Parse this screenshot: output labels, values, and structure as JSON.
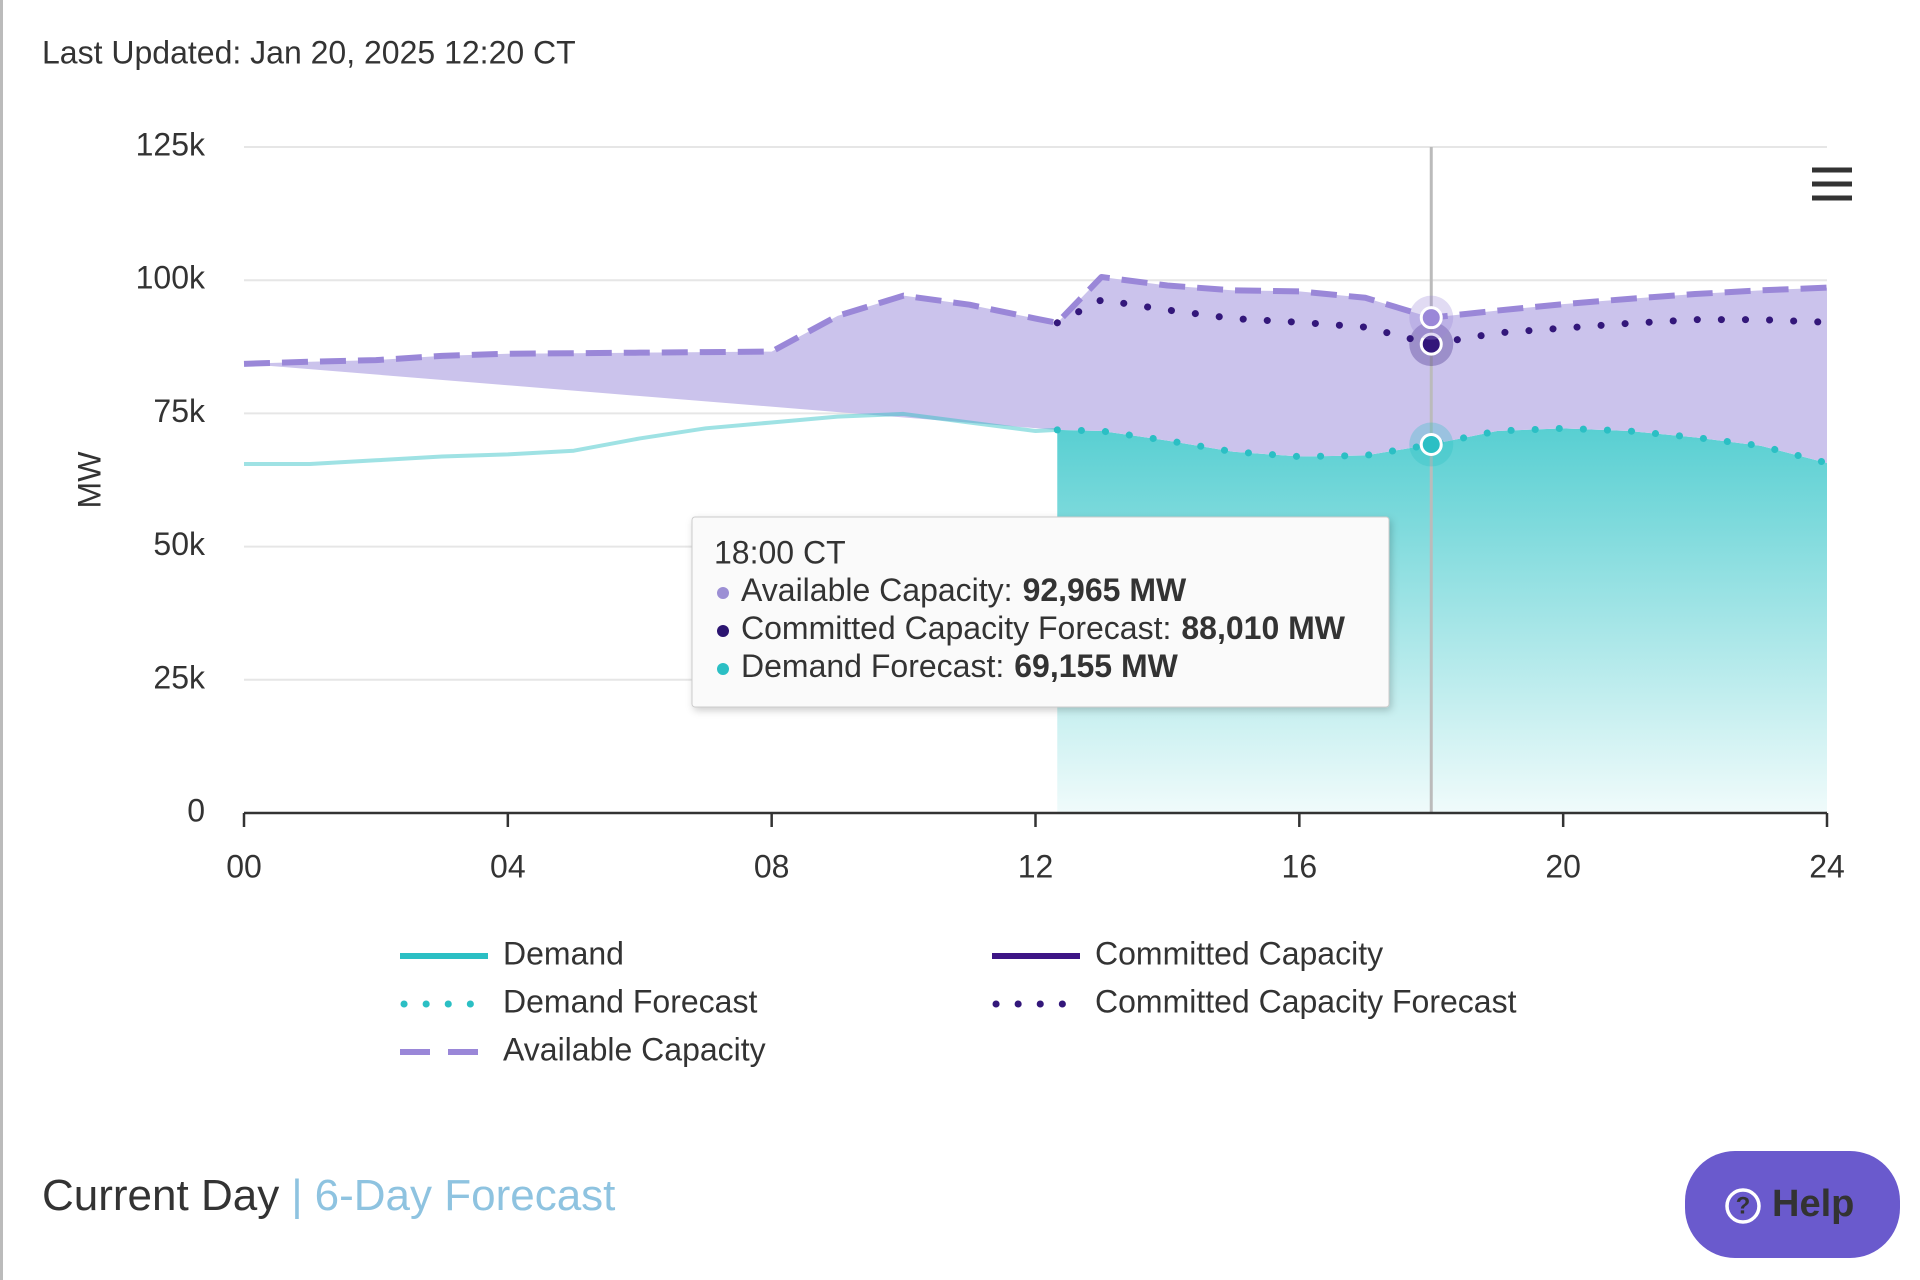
{
  "header": {
    "last_updated": "Last Updated: Jan 20, 2025 12:20 CT"
  },
  "chart_data": {
    "type": "line",
    "y_label": "MW",
    "x": [
      0,
      1,
      2,
      3,
      4,
      5,
      6,
      7,
      8,
      9,
      10,
      11,
      12,
      12.33,
      13,
      14,
      15,
      16,
      17,
      18,
      19,
      20,
      21,
      22,
      23,
      24
    ],
    "xlim": [
      0,
      24
    ],
    "xticks": [
      {
        "value": 0,
        "label": "00"
      },
      {
        "value": 4,
        "label": "04"
      },
      {
        "value": 8,
        "label": "08"
      },
      {
        "value": 12,
        "label": "12"
      },
      {
        "value": 16,
        "label": "16"
      },
      {
        "value": 20,
        "label": "20"
      },
      {
        "value": 24,
        "label": "24"
      }
    ],
    "ylim": [
      0,
      125000
    ],
    "yticks": [
      0,
      {
        "value": 25000,
        "label": "25k"
      },
      {
        "value": 50000,
        "label": "50k"
      },
      {
        "value": 75000,
        "label": "75k"
      },
      {
        "value": 100000,
        "label": "100k"
      },
      {
        "value": 125000,
        "label": "125k"
      }
    ],
    "grid": true,
    "crosshair_x": 18,
    "series": [
      {
        "name": "Demand",
        "color": "#2bbfc4",
        "dash": "solid",
        "values": [
          65500,
          65500,
          66200,
          66900,
          67300,
          68000,
          70300,
          72200,
          73300,
          74400,
          74900,
          73300,
          71700,
          71900,
          null,
          null,
          null,
          null,
          null,
          null,
          null,
          null,
          null,
          null,
          null,
          null
        ]
      },
      {
        "name": "Committed Capacity",
        "color": "#3d1585",
        "dash": "solid",
        "values": [
          null,
          null,
          null,
          null,
          null,
          null,
          null,
          null,
          null,
          null,
          null,
          null,
          null,
          null,
          null,
          null,
          null,
          null,
          null,
          null,
          null,
          null,
          null,
          null,
          null,
          null
        ]
      },
      {
        "name": "Demand Forecast",
        "color": "#2bbfc4",
        "dash": "dotted",
        "values": [
          null,
          null,
          null,
          null,
          null,
          null,
          null,
          null,
          null,
          null,
          null,
          null,
          null,
          71900,
          71700,
          69900,
          67800,
          66900,
          67100,
          69155,
          71700,
          72200,
          71700,
          70500,
          68900,
          65700
        ]
      },
      {
        "name": "Committed Capacity Forecast",
        "color": "#33177a",
        "dash": "dotted",
        "values": [
          null,
          null,
          null,
          null,
          null,
          null,
          null,
          null,
          null,
          null,
          null,
          null,
          null,
          92000,
          96300,
          94400,
          92800,
          92100,
          91200,
          88010,
          90100,
          91000,
          91900,
          92600,
          92600,
          92100
        ]
      },
      {
        "name": "Available Capacity",
        "color": "#9a87d8",
        "dash": "dashed",
        "values": [
          84300,
          84700,
          85000,
          85800,
          86200,
          86300,
          86400,
          86500,
          86600,
          93300,
          97100,
          95400,
          92800,
          92000,
          100600,
          99000,
          98100,
          97900,
          96700,
          92965,
          94300,
          95500,
          96500,
          97400,
          98100,
          98600
        ]
      }
    ]
  },
  "tooltip": {
    "title": "18:00 CT",
    "items": [
      {
        "label": "Available Capacity:",
        "value": "92,965 MW",
        "color": "#9c8fd4"
      },
      {
        "label": "Committed Capacity Forecast:",
        "value": "88,010 MW",
        "color": "#2b1470"
      },
      {
        "label": "Demand Forecast:",
        "value": "69,155 MW",
        "color": "#2bbfc4"
      }
    ]
  },
  "tabs": {
    "active": "Current Day",
    "separator": "|",
    "other": "6-Day Forecast"
  },
  "help": {
    "icon": "?",
    "label": "Help"
  }
}
